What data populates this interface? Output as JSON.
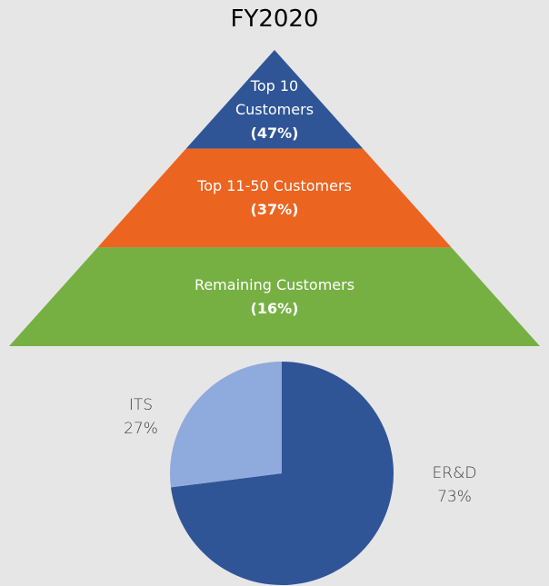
{
  "chart_data": [
    {
      "type": "pyramid",
      "title": "FY2020",
      "categories": [
        "Top 10 Customers",
        "Top 11-50 Customers",
        "Remaining Customers"
      ],
      "values": [
        47,
        37,
        16
      ],
      "value_labels": [
        "(47%)",
        "(37%)",
        "(16%)"
      ],
      "colors": [
        "#2f5597",
        "#eb6420",
        "#76b043"
      ]
    },
    {
      "type": "pie",
      "categories": [
        "ER&D",
        "ITS"
      ],
      "values": [
        73,
        27
      ],
      "value_labels": [
        "73%",
        "27%"
      ],
      "colors": [
        "#2f5597",
        "#8faadc"
      ]
    }
  ]
}
